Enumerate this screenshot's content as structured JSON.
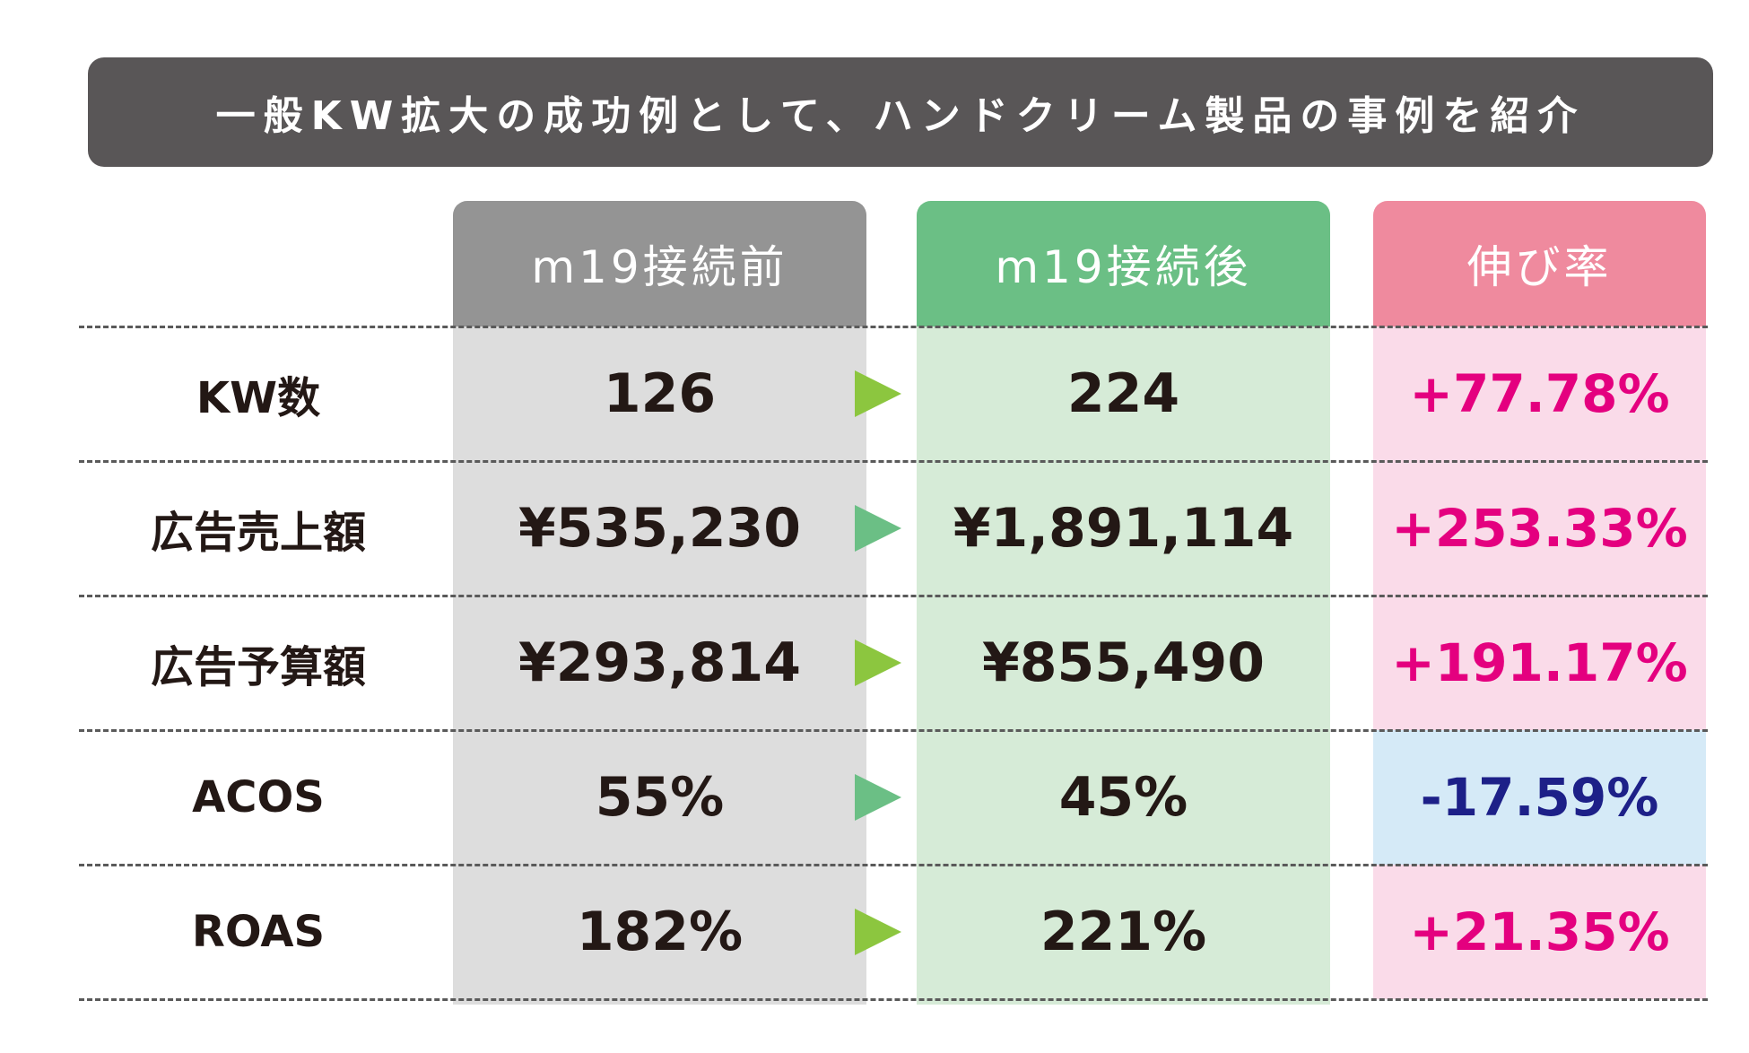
{
  "title": "一般KW拡大の成功例として、ハンドクリーム製品の事例を紹介",
  "colors": {
    "banner_bg": "#595657",
    "before_header": "#949494",
    "before_column": "#dddddd",
    "after_header": "#6bbf85",
    "after_column": "#d6ebd7",
    "rate_header": "#ef8a9e",
    "rate_positive_bg": "#fadbe9",
    "rate_negative_bg": "#d5eaf7",
    "rate_positive_text": "#e4007f",
    "rate_negative_text": "#1d2088",
    "arrow_lime": "#8cc63f",
    "arrow_teal": "#6bbf85"
  },
  "chart_data": {
    "type": "table",
    "title": "一般KW拡大の成功例として、ハンドクリーム製品の事例を紹介",
    "columns": [
      "m19接続前",
      "m19接続後",
      "伸び率"
    ],
    "rows": [
      {
        "label": "KW数",
        "before": "126",
        "after": "224",
        "rate": "+77.78%",
        "rate_sign": "positive",
        "arrow": "lime"
      },
      {
        "label": "広告売上額",
        "before": "¥535,230",
        "after": "¥1,891,114",
        "rate": "+253.33%",
        "rate_sign": "positive",
        "arrow": "teal"
      },
      {
        "label": "広告予算額",
        "before": "¥293,814",
        "after": "¥855,490",
        "rate": "+191.17%",
        "rate_sign": "positive",
        "arrow": "lime"
      },
      {
        "label": "ACOS",
        "before": "55%",
        "after": "45%",
        "rate": "-17.59%",
        "rate_sign": "negative",
        "arrow": "teal"
      },
      {
        "label": "ROAS",
        "before": "182%",
        "after": "221%",
        "rate": "+21.35%",
        "rate_sign": "positive",
        "arrow": "lime"
      }
    ]
  }
}
